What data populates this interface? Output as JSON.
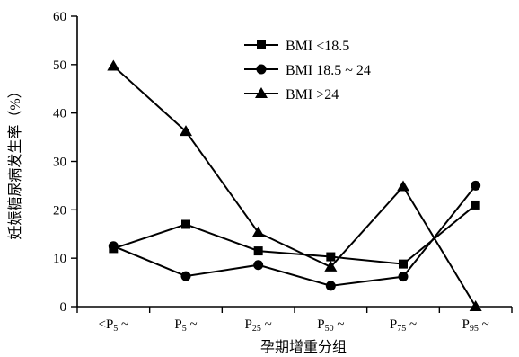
{
  "chart_data": {
    "type": "line",
    "xlabel": "孕期增重分组",
    "ylabel": "妊娠糖尿病发生率（%）",
    "ylim": [
      0,
      60
    ],
    "yticks": [
      0,
      10,
      20,
      30,
      40,
      50,
      60
    ],
    "categories": [
      "<P5 ~",
      "P5 ~",
      "P25 ~",
      "P50 ~",
      "P75 ~",
      "P95 ~"
    ],
    "category_parts": [
      {
        "prefix": "<P",
        "sub": "5",
        "suffix": " ~"
      },
      {
        "prefix": "P",
        "sub": "5",
        "suffix": " ~"
      },
      {
        "prefix": "P",
        "sub": "25",
        "suffix": " ~"
      },
      {
        "prefix": "P",
        "sub": "50",
        "suffix": " ~"
      },
      {
        "prefix": "P",
        "sub": "75",
        "suffix": " ~"
      },
      {
        "prefix": "P",
        "sub": "95",
        "suffix": " ~"
      }
    ],
    "legend_position": "top-right",
    "grid": false,
    "series": [
      {
        "name": "BMI <18.5",
        "marker": "square",
        "values": [
          12.0,
          17.0,
          11.5,
          10.3,
          8.8,
          21.0
        ]
      },
      {
        "name": "BMI 18.5 ~ 24",
        "marker": "circle",
        "values": [
          12.5,
          6.3,
          8.6,
          4.3,
          6.2,
          25.0
        ]
      },
      {
        "name": "BMI >24",
        "marker": "triangle",
        "values": [
          49.7,
          36.2,
          15.3,
          8.2,
          24.8,
          0.0
        ]
      }
    ]
  }
}
